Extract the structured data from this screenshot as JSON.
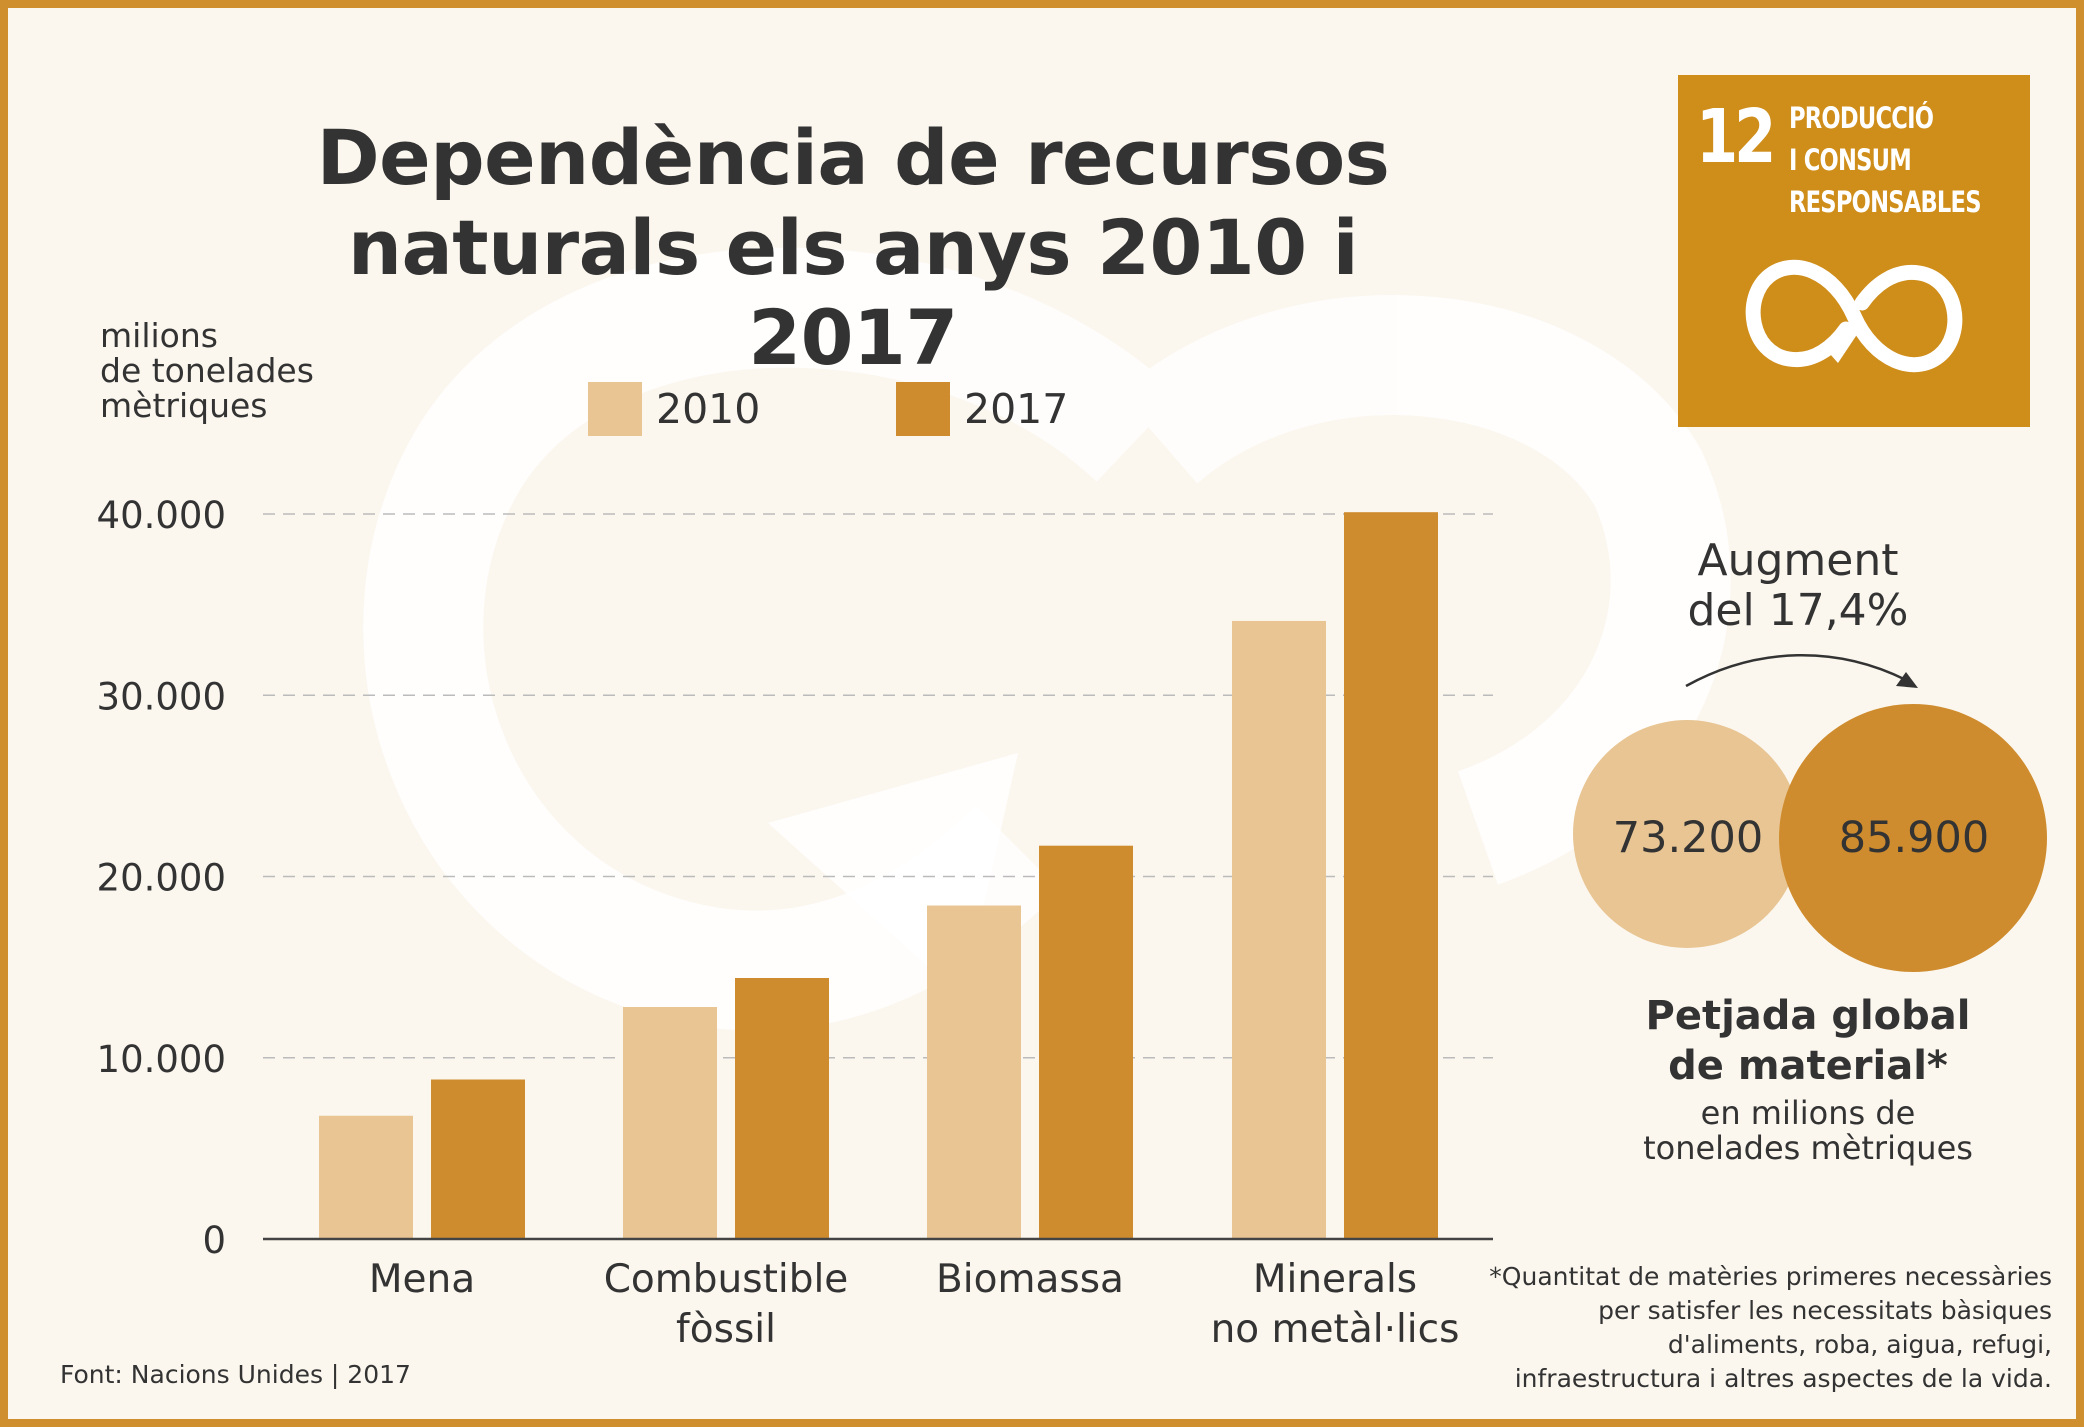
{
  "title": "Dependència de recursos naturals els anys 2010 i 2017",
  "colors": {
    "series_2010": "#e8c593",
    "series_2017": "#cf8c2e",
    "frame": "#cf8f2e",
    "background": "#fbf7ef",
    "sdg_badge": "#cf8d1a",
    "gridline": "#bbbbbb",
    "text": "#333333"
  },
  "chart_data": {
    "type": "bar",
    "title": "Dependència de recursos naturals els anys 2010 i 2017",
    "ylabel": "milions de tonelades mètriques",
    "ylabel_lines": [
      "milions",
      "de tonelades",
      "mètriques"
    ],
    "xlabel": "",
    "categories": [
      [
        "Mena"
      ],
      [
        "Combustible",
        "fòssil"
      ],
      [
        "Biomassa"
      ],
      [
        "Minerals",
        "no metàl·lics"
      ]
    ],
    "series": [
      {
        "name": "2010",
        "values": [
          6800,
          12800,
          18400,
          34100
        ]
      },
      {
        "name": "2017",
        "values": [
          8800,
          14400,
          21700,
          40100
        ]
      }
    ],
    "ylim": [
      0,
      40000
    ],
    "yticks": [
      0,
      10000,
      20000,
      30000,
      40000
    ],
    "ytick_labels": [
      "0",
      "10.000",
      "20.000",
      "30.000",
      "40.000"
    ],
    "grid": true,
    "legend_position": "top-center"
  },
  "sdg": {
    "number": "12",
    "lines": [
      "PRODUCCIÓ",
      "I CONSUM",
      "RESPONSABLES"
    ],
    "icon": "infinity-arrow-icon"
  },
  "footprint": {
    "increase_lines": [
      "Augment",
      "del 17,4%"
    ],
    "value_2010": "73.200",
    "value_2017": "85.900",
    "values_numeric": {
      "2010": 73200,
      "2017": 85900
    },
    "title_lines": [
      "Petjada global",
      "de material*"
    ],
    "unit_lines": [
      "en milions de",
      "tonelades mètriques"
    ]
  },
  "footnote_lines": [
    "*Quantitat de matèries primeres necessàries",
    "per satisfer les necessitats bàsiques",
    "d'aliments, roba, aigua, refugi,",
    "infraestructura i altres aspectes de la vida."
  ],
  "source": "Font: Nacions Unides | 2017"
}
